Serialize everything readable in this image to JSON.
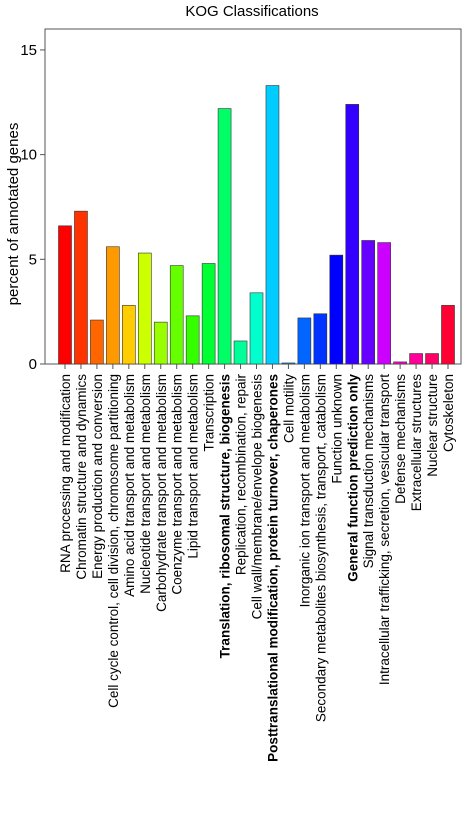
{
  "chart_data": {
    "type": "bar",
    "title": "KOG Classifications",
    "xlabel": "",
    "ylabel": "percent of annotated genes",
    "ylim": [
      0,
      16
    ],
    "yticks": [
      0,
      5,
      10,
      15
    ],
    "grid": false,
    "categories": [
      "RNA processing and modification",
      "Chromatin structure and dynamics",
      "Energy production and conversion",
      "Cell cycle control, cell division, chromosome partitioning",
      "Amino acid transport and metabolism",
      "Nucleotide transport and metabolism",
      "Carbohydrate transport and metabolism",
      "Coenzyme transport and metabolism",
      "Lipid transport and metabolism",
      "Transcription",
      "Translation, ribosomal structure, biogenesis",
      "Replication, recombination, repair",
      "Cell wall/membrane/envelope biogenesis",
      "Posttranslational modification, protein turnover, chaperones",
      "Cell motility",
      "Inorganic ion transport and metabolism",
      "Secondary metabolites biosynthesis, transport, catabolism",
      "Function unknown",
      "General function prediction only",
      "Signal transduction mechanisms",
      "Intracellular trafficking, secretion, vesicular transport",
      "Defense mechanisms",
      "Extracellular structures",
      "Nuclear structure",
      "Cytoskeleton"
    ],
    "values": [
      6.6,
      7.3,
      2.1,
      5.6,
      2.8,
      5.3,
      2.0,
      4.7,
      2.3,
      4.8,
      12.2,
      1.1,
      3.4,
      13.3,
      0.05,
      2.2,
      2.4,
      5.2,
      12.4,
      5.9,
      5.8,
      0.1,
      0.5,
      0.5,
      2.8
    ],
    "bold_categories": [
      "Translation, ribosomal structure, biogenesis",
      "Posttranslational modification, protein turnover, chaperones",
      "General function prediction only"
    ],
    "colors": [
      "#ff0000",
      "#ff3300",
      "#ff6600",
      "#ff9900",
      "#ffcc00",
      "#ccff00",
      "#99ff00",
      "#66ff00",
      "#33ff00",
      "#00ff33",
      "#00ff66",
      "#00ff99",
      "#00ffcc",
      "#00ccff",
      "#0099ff",
      "#0066ff",
      "#0033ff",
      "#0000ff",
      "#3300ff",
      "#6600ff",
      "#cc00ff",
      "#ff00cc",
      "#ff0099",
      "#ff0066",
      "#ff0033"
    ]
  }
}
